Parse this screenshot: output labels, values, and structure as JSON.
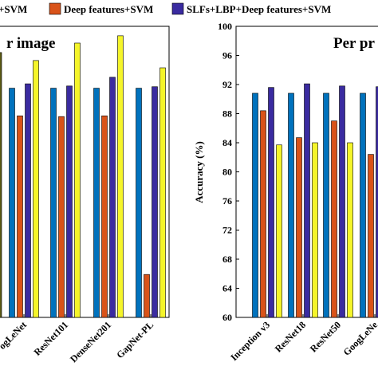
{
  "legend": [
    {
      "label": "+SVM",
      "color": "#0072BD"
    },
    {
      "label": "Deep features+SVM",
      "color": "#D95319"
    },
    {
      "label": "SLFs+LBP+Deep features+SVM",
      "color": "#3A2BA0"
    }
  ],
  "colors": {
    "series1": "#0072BD",
    "series2": "#D95319",
    "series3": "#3A2BA0",
    "series4": "#F5F52A",
    "olive": "#5B5A14"
  },
  "chart_data": [
    {
      "type": "bar",
      "title": "r image",
      "categories": [
        "ogLeNet",
        "ResNet101",
        "DenseNet201",
        "GapNet-PL"
      ],
      "series": [
        {
          "values": [
            91.5,
            91.5,
            91.5,
            91.5
          ]
        },
        {
          "values": [
            87.7,
            87.6,
            87.7,
            65.9
          ]
        },
        {
          "values": [
            92.1,
            91.8,
            93.0,
            91.7
          ]
        },
        {
          "values": [
            95.3,
            97.7,
            98.7,
            94.3
          ]
        }
      ],
      "partial_bar_value": 96.4,
      "ylim": [
        60,
        100
      ],
      "grid": false
    },
    {
      "type": "bar",
      "title": "Per pr",
      "ylabel": "Accuracy (%)",
      "yticks": [
        "60",
        "64",
        "68",
        "72",
        "76",
        "80",
        "84",
        "88",
        "92",
        "96",
        "100"
      ],
      "categories": [
        "Inception v3",
        "ResNet18",
        "ResNet50",
        "GoogLeNe"
      ],
      "series": [
        {
          "values": [
            90.8,
            90.8,
            90.8,
            90.8
          ]
        },
        {
          "values": [
            88.4,
            84.7,
            87.0,
            82.4
          ]
        },
        {
          "values": [
            91.6,
            92.1,
            91.8,
            91.7
          ]
        },
        {
          "values": [
            83.7,
            84.0,
            84.0,
            null
          ]
        }
      ],
      "ylim": [
        60,
        100
      ],
      "grid": false
    }
  ]
}
